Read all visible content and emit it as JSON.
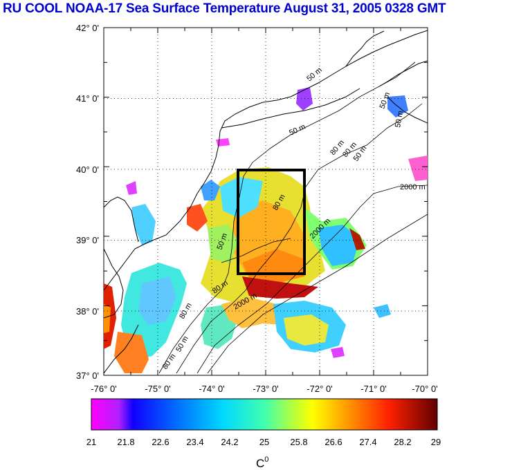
{
  "title": "RU COOL  NOAA-17 Sea Surface Temperature August 31, 2005 0328 GMT",
  "map": {
    "lat_labels": [
      "42° 0'",
      "41° 0'",
      "40° 0'",
      "39° 0'",
      "38° 0'",
      "37° 0'"
    ],
    "lon_labels": [
      "-76° 0'",
      "-75° 0'",
      "-74° 0'",
      "-73° 0'",
      "-72° 0'",
      "-71° 0'",
      "-70° 0'"
    ],
    "lat_values": [
      42,
      41,
      40,
      39,
      38,
      37
    ],
    "lon_values": [
      -76,
      -75,
      -74,
      -73,
      -72,
      -71,
      -70
    ],
    "contour_labels": [
      "50 m",
      "50 m",
      "50 m",
      "80 m",
      "2000 m",
      "2000 m",
      "80 m",
      "50 m",
      "2000 m",
      "50 m",
      "80 m",
      "50 m",
      "80 m",
      "50 m",
      "80 m",
      "80 m"
    ],
    "study_box": {
      "lon_min": -73.45,
      "lon_max": -72.25,
      "lat_min": 38.5,
      "lat_max": 40.0
    },
    "colors": {
      "land_outline": "#000000",
      "box": "#000000",
      "grid": "#000000"
    }
  },
  "colorbar": {
    "tick_labels": [
      "21",
      "21.8",
      "22.6",
      "23.4",
      "24.2",
      "25",
      "25.8",
      "26.6",
      "27.4",
      "28.2",
      "29"
    ],
    "unit_label": "C",
    "unit_superscript": "0",
    "colors": [
      "#ff00ff",
      "#b020ff",
      "#0000ff",
      "#0060ff",
      "#00c0ff",
      "#00ffd0",
      "#80ff60",
      "#ffff00",
      "#ffa000",
      "#ff2000",
      "#600000"
    ]
  }
}
